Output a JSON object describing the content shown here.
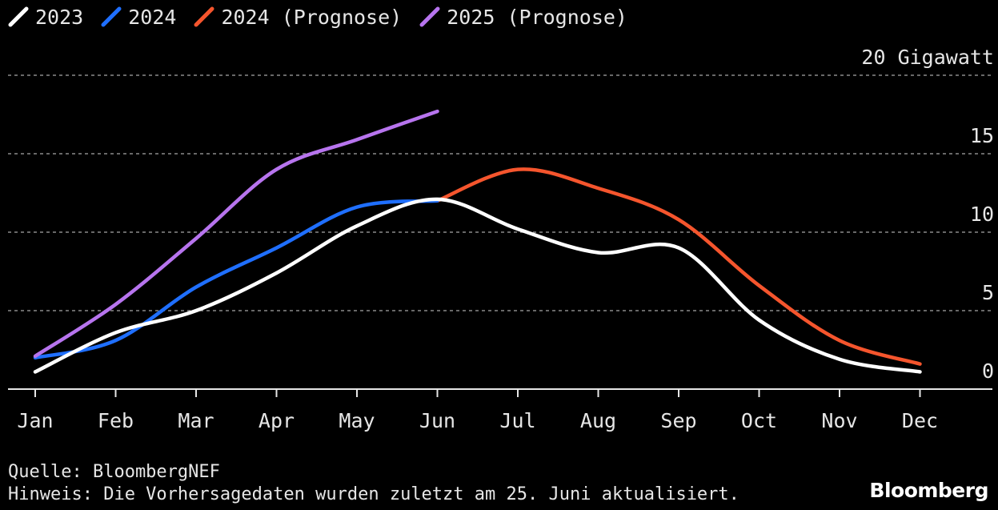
{
  "chart_data": {
    "type": "line",
    "y_unit_label": "20 Gigawatt",
    "ylim": [
      0,
      20
    ],
    "y_ticks": [
      {
        "value": 20,
        "label": "20 Gigawatt"
      },
      {
        "value": 15,
        "label": "15"
      },
      {
        "value": 10,
        "label": "10"
      },
      {
        "value": 5,
        "label": "5"
      },
      {
        "value": 0,
        "label": "0"
      }
    ],
    "categories": [
      "Jan",
      "Feb",
      "Mar",
      "Apr",
      "May",
      "Jun",
      "Jul",
      "Aug",
      "Sep",
      "Oct",
      "Nov",
      "Dec"
    ],
    "grid": "dashed horizontal",
    "legend_position": "top-left",
    "series": [
      {
        "name": "2023",
        "color": "#ffffff",
        "values": [
          1.1,
          3.6,
          5.0,
          7.4,
          10.4,
          12.1,
          10.2,
          8.7,
          9.0,
          4.4,
          1.9,
          1.1
        ]
      },
      {
        "name": "2024",
        "color": "#1f6fff",
        "values": [
          2.0,
          3.1,
          6.5,
          9.0,
          11.6,
          12.0,
          null,
          null,
          null,
          null,
          null,
          null
        ]
      },
      {
        "name": "2024 (Prognose)",
        "color": "#f5552d",
        "values": [
          null,
          null,
          null,
          null,
          null,
          12.0,
          14.0,
          12.8,
          10.8,
          6.6,
          3.1,
          1.6
        ]
      },
      {
        "name": "2025 (Prognose)",
        "color": "#b774ee",
        "values": [
          2.1,
          5.4,
          9.6,
          14.0,
          15.9,
          17.7,
          null,
          null,
          null,
          null,
          null,
          null
        ]
      }
    ]
  },
  "footer": {
    "source": "Quelle: BloombergNEF",
    "note": "Hinweis: Die Vorhersagedaten wurden zuletzt am 25. Juni aktualisiert.",
    "brand": "Bloomberg"
  }
}
